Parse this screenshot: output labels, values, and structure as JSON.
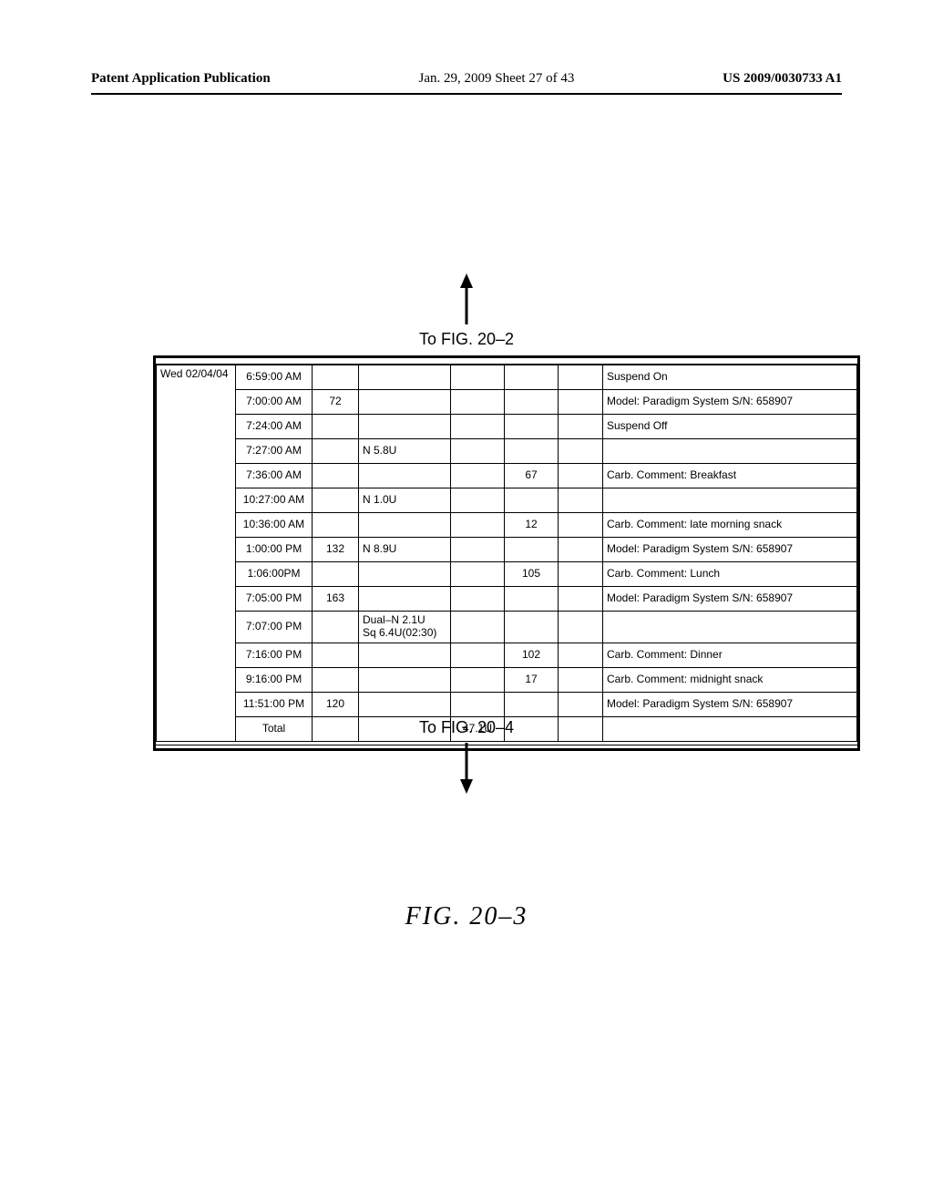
{
  "header": {
    "left": "Patent Application Publication",
    "mid": "Jan. 29, 2009  Sheet 27 of 43",
    "right": "US 2009/0030733 A1"
  },
  "refs": {
    "top": "To FIG. 20–2",
    "bottom": "To FIG. 20–4"
  },
  "figure_label": "FIG.  20–3",
  "table": {
    "rows": [
      {
        "date": "Wed 02/04/04",
        "time": "6:59:00 AM",
        "c3": "",
        "c4": "",
        "c5": "",
        "c6": "",
        "c7": "",
        "desc": "Suspend On"
      },
      {
        "date": "",
        "time": "7:00:00 AM",
        "c3": "72",
        "c4": "",
        "c5": "",
        "c6": "",
        "c7": "",
        "desc": "Model: Paradigm System S/N: 658907"
      },
      {
        "date": "",
        "time": "7:24:00 AM",
        "c3": "",
        "c4": "",
        "c5": "",
        "c6": "",
        "c7": "",
        "desc": "Suspend Off"
      },
      {
        "date": "",
        "time": "7:27:00 AM",
        "c3": "",
        "c4": "N 5.8U",
        "c5": "",
        "c6": "",
        "c7": "",
        "desc": ""
      },
      {
        "date": "",
        "time": "7:36:00 AM",
        "c3": "",
        "c4": "",
        "c5": "",
        "c6": "67",
        "c7": "",
        "desc": "Carb. Comment: Breakfast"
      },
      {
        "date": "",
        "time": "10:27:00 AM",
        "c3": "",
        "c4": "N 1.0U",
        "c5": "",
        "c6": "",
        "c7": "",
        "desc": ""
      },
      {
        "date": "",
        "time": "10:36:00 AM",
        "c3": "",
        "c4": "",
        "c5": "",
        "c6": "12",
        "c7": "",
        "desc": "Carb. Comment: late morning snack"
      },
      {
        "date": "",
        "time": "1:00:00 PM",
        "c3": "132",
        "c4": "N 8.9U",
        "c5": "",
        "c6": "",
        "c7": "",
        "desc": "Model: Paradigm System S/N: 658907"
      },
      {
        "date": "",
        "time": "1:06:00PM",
        "c3": "",
        "c4": "",
        "c5": "",
        "c6": "105",
        "c7": "",
        "desc": "Carb. Comment: Lunch"
      },
      {
        "date": "",
        "time": "7:05:00 PM",
        "c3": "163",
        "c4": "",
        "c5": "",
        "c6": "",
        "c7": "",
        "desc": "Model: Paradigm System S/N: 658907"
      },
      {
        "date": "",
        "time": "7:07:00 PM",
        "c3": "",
        "c4": "Dual–N 2.1U\nSq 6.4U(02:30)",
        "c5": "",
        "c6": "",
        "c7": "",
        "desc": ""
      },
      {
        "date": "",
        "time": "7:16:00 PM",
        "c3": "",
        "c4": "",
        "c5": "",
        "c6": "102",
        "c7": "",
        "desc": "Carb. Comment: Dinner"
      },
      {
        "date": "",
        "time": "9:16:00 PM",
        "c3": "",
        "c4": "",
        "c5": "",
        "c6": "17",
        "c7": "",
        "desc": "Carb. Comment: midnight snack"
      },
      {
        "date": "",
        "time": "11:51:00 PM",
        "c3": "120",
        "c4": "",
        "c5": "",
        "c6": "",
        "c7": "",
        "desc": "Model: Paradigm System S/N: 658907"
      },
      {
        "date": "",
        "time": "Total",
        "c3": "",
        "c4": "",
        "c5": "47.1U",
        "c6": "",
        "c7": "",
        "desc": ""
      }
    ]
  }
}
